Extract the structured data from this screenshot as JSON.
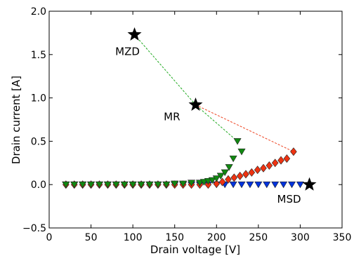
{
  "chart_data": {
    "type": "scatter",
    "title": "",
    "xlabel": "Drain voltage [V]",
    "ylabel": "Drain current [A]",
    "xlim": [
      0,
      350
    ],
    "ylim": [
      -0.5,
      2.0
    ],
    "xticks": [
      0,
      50,
      100,
      150,
      200,
      250,
      300,
      350
    ],
    "yticks": [
      -0.5,
      0.0,
      0.5,
      1.0,
      1.5,
      2.0
    ],
    "xtick_labels": [
      "0",
      "50",
      "100",
      "150",
      "200",
      "250",
      "300",
      "350"
    ],
    "ytick_labels": [
      "−0.5",
      "0.0",
      "0.5",
      "1.0",
      "1.5",
      "2.0"
    ],
    "grid": false,
    "series": [
      {
        "marker": "triangle-down",
        "color": "#0033dd",
        "x": [
          20,
          30,
          40,
          50,
          60,
          70,
          80,
          90,
          100,
          110,
          120,
          130,
          140,
          150,
          160,
          170,
          180,
          190,
          200,
          210,
          220,
          230,
          240,
          250,
          260,
          270,
          280,
          290,
          300
        ],
        "y": [
          0,
          0,
          0,
          0,
          0,
          0,
          0,
          0,
          0,
          0,
          0,
          0,
          0,
          0,
          0,
          0,
          0,
          0,
          0,
          0,
          0,
          0,
          0,
          0,
          0,
          0,
          0,
          0,
          0
        ]
      },
      {
        "marker": "diamond",
        "color": "#ee3311",
        "x": [
          20,
          30,
          40,
          50,
          60,
          70,
          80,
          90,
          100,
          110,
          120,
          130,
          140,
          150,
          160,
          170,
          180,
          190,
          200,
          207,
          214,
          221,
          228,
          235,
          242,
          249,
          256,
          263,
          270,
          277,
          284,
          292
        ],
        "y": [
          0,
          0,
          0,
          0,
          0,
          0,
          0,
          0,
          0,
          0,
          0,
          0,
          0,
          0,
          0,
          0,
          0,
          0,
          0.01,
          0.03,
          0.06,
          0.08,
          0.1,
          0.12,
          0.14,
          0.17,
          0.19,
          0.22,
          0.25,
          0.28,
          0.3,
          0.38
        ]
      },
      {
        "marker": "triangle-down",
        "color": "#118811",
        "x": [
          20,
          30,
          40,
          50,
          60,
          70,
          80,
          90,
          100,
          110,
          120,
          130,
          140,
          150,
          160,
          170,
          180,
          185,
          190,
          195,
          200,
          205,
          210,
          215,
          220,
          225,
          230
        ],
        "y": [
          0,
          0,
          0,
          0,
          0,
          0,
          0,
          0,
          0,
          0,
          0,
          0,
          0,
          0.01,
          0.01,
          0.02,
          0.02,
          0.03,
          0.04,
          0.05,
          0.07,
          0.1,
          0.14,
          0.2,
          0.3,
          0.5,
          0.38
        ]
      }
    ],
    "stars": [
      {
        "label": "MZD",
        "x": 102,
        "y": 1.73
      },
      {
        "label": "MR",
        "x": 175,
        "y": 0.92
      },
      {
        "label": "MSD",
        "x": 311,
        "y": 0.0
      }
    ],
    "dashed_lines": [
      {
        "color": "#22aa22",
        "points": [
          [
            102,
            1.73
          ],
          [
            175,
            0.92
          ],
          [
            225,
            0.5
          ]
        ]
      },
      {
        "color": "#ee4422",
        "points": [
          [
            175,
            0.92
          ],
          [
            292,
            0.38
          ]
        ]
      }
    ]
  }
}
